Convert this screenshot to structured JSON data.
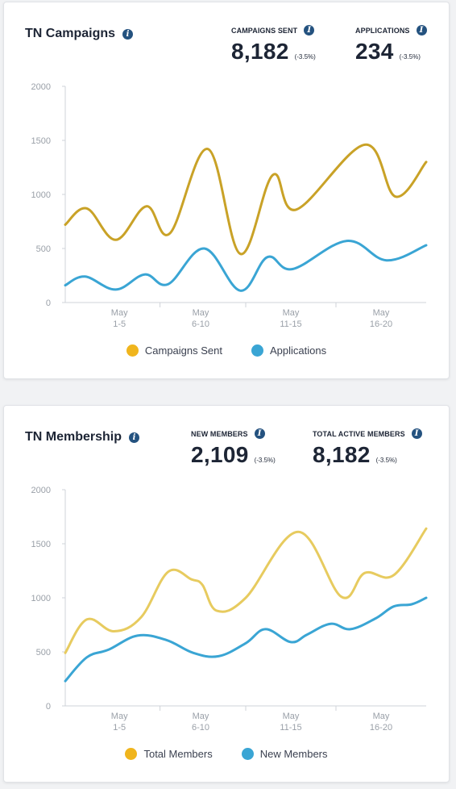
{
  "colors": {
    "gold": "#c9a227",
    "gold_dot": "#f0b51d",
    "gold_light": "#e7cb5f",
    "gold_light_dot": "#f0b51d",
    "blue": "#3aa5d4",
    "blue_dot": "#3aa5d4",
    "axis_text": "#9aa0a8",
    "axis_line": "#cfd3d8",
    "info_icon": "#24527f"
  },
  "cards": [
    {
      "title": "TN Campaigns",
      "stats": [
        {
          "label": "CAMPAIGNS SENT",
          "value": "8,182",
          "change": "(-3.5%)"
        },
        {
          "label": "APPLICATIONS",
          "value": "234",
          "change": "(-3.5%)"
        }
      ]
    },
    {
      "title": "TN Membership",
      "stats": [
        {
          "label": "NEW MEMBERS",
          "value": "2,109",
          "change": "(-3.5%)"
        },
        {
          "label": "TOTAL ACTIVE MEMBERS",
          "value": "8,182",
          "change": "(-3.5%)"
        }
      ]
    }
  ],
  "chart_data": [
    {
      "type": "line",
      "title": "TN Campaigns",
      "x_range": [
        0,
        20
      ],
      "ylim": [
        0,
        2000
      ],
      "y_ticks": [
        "0",
        "500",
        "1000",
        "1500",
        "2000"
      ],
      "categories": [
        {
          "line1": "May",
          "line2": "1-5",
          "x": 3
        },
        {
          "line1": "May",
          "line2": "6-10",
          "x": 7.5
        },
        {
          "line1": "May",
          "line2": "11-15",
          "x": 12.5
        },
        {
          "line1": "May",
          "line2": "16-20",
          "x": 17.5
        }
      ],
      "series": [
        {
          "name": "Campaigns Sent",
          "color": "#c9a227",
          "dot_color": "#f0b51d",
          "points": [
            [
              0,
              720
            ],
            [
              1.2,
              870
            ],
            [
              2.8,
              580
            ],
            [
              4.5,
              890
            ],
            [
              5.8,
              640
            ],
            [
              7.9,
              1420
            ],
            [
              9.7,
              450
            ],
            [
              11.5,
              1180
            ],
            [
              12.8,
              860
            ],
            [
              16.6,
              1460
            ],
            [
              18.3,
              980
            ],
            [
              20,
              1300
            ]
          ]
        },
        {
          "name": "Applications",
          "color": "#3aa5d4",
          "dot_color": "#3aa5d4",
          "points": [
            [
              0,
              160
            ],
            [
              1.1,
              240
            ],
            [
              2.8,
              120
            ],
            [
              4.4,
              260
            ],
            [
              5.7,
              170
            ],
            [
              7.7,
              500
            ],
            [
              9.7,
              110
            ],
            [
              11.2,
              420
            ],
            [
              12.6,
              310
            ],
            [
              15.6,
              570
            ],
            [
              17.8,
              390
            ],
            [
              20,
              530
            ]
          ]
        }
      ]
    },
    {
      "type": "line",
      "title": "TN Membership",
      "x_range": [
        0,
        20
      ],
      "ylim": [
        0,
        2000
      ],
      "y_ticks": [
        "0",
        "500",
        "1000",
        "1500",
        "2000"
      ],
      "categories": [
        {
          "line1": "May",
          "line2": "1-5",
          "x": 3
        },
        {
          "line1": "May",
          "line2": "6-10",
          "x": 7.5
        },
        {
          "line1": "May",
          "line2": "11-15",
          "x": 12.5
        },
        {
          "line1": "May",
          "line2": "16-20",
          "x": 17.5
        }
      ],
      "series": [
        {
          "name": "Total Members",
          "color": "#e7cb5f",
          "dot_color": "#f0b51d",
          "points": [
            [
              0,
              490
            ],
            [
              1.2,
              800
            ],
            [
              2.7,
              690
            ],
            [
              4.2,
              820
            ],
            [
              5.7,
              1240
            ],
            [
              7,
              1170
            ],
            [
              7.6,
              1120
            ],
            [
              8.4,
              880
            ],
            [
              10,
              1000
            ],
            [
              12.9,
              1610
            ],
            [
              15.3,
              1010
            ],
            [
              16.6,
              1230
            ],
            [
              18.2,
              1210
            ],
            [
              20,
              1640
            ]
          ]
        },
        {
          "name": "New Members",
          "color": "#3aa5d4",
          "dot_color": "#3aa5d4",
          "points": [
            [
              0,
              230
            ],
            [
              1.2,
              450
            ],
            [
              2.4,
              520
            ],
            [
              4,
              650
            ],
            [
              5.6,
              610
            ],
            [
              7.1,
              490
            ],
            [
              8.5,
              460
            ],
            [
              10,
              580
            ],
            [
              11.1,
              710
            ],
            [
              12.5,
              590
            ],
            [
              13.4,
              660
            ],
            [
              14.7,
              760
            ],
            [
              15.8,
              710
            ],
            [
              17.2,
              810
            ],
            [
              18.2,
              920
            ],
            [
              19.2,
              940
            ],
            [
              20,
              1000
            ]
          ]
        }
      ]
    }
  ]
}
